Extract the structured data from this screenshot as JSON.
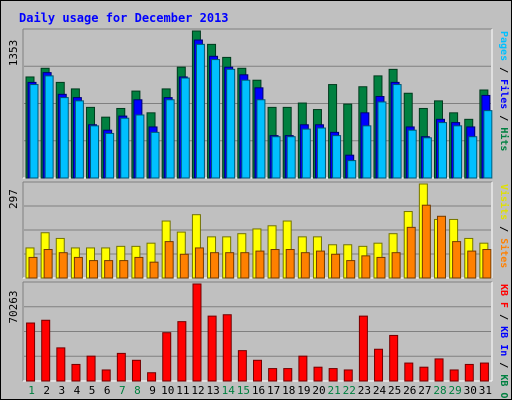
{
  "chart_data": {
    "type": "bar",
    "title": "Daily usage for December 2013",
    "categories": [
      "1",
      "2",
      "3",
      "4",
      "5",
      "6",
      "7",
      "8",
      "9",
      "10",
      "11",
      "12",
      "13",
      "14",
      "15",
      "16",
      "17",
      "18",
      "19",
      "20",
      "21",
      "22",
      "23",
      "24",
      "25",
      "26",
      "27",
      "28",
      "29",
      "30",
      "31"
    ],
    "weekend_days": [
      "1",
      "7",
      "8",
      "14",
      "15",
      "21",
      "22",
      "28",
      "29"
    ],
    "panels": [
      {
        "name": "top",
        "max_label": "1353",
        "ylim": [
          0,
          1353
        ],
        "legend": [
          {
            "text": "Pages",
            "color": "#00c0ff"
          },
          {
            "text": " / ",
            "color": "#000000"
          },
          {
            "text": "Files",
            "color": "#0000ff"
          },
          {
            "text": " / ",
            "color": "#000000"
          },
          {
            "text": "Hits",
            "color": "#008040"
          }
        ],
        "series": [
          {
            "name": "Hits",
            "color": "#008040",
            "values": [
              930,
              1010,
              880,
              820,
              650,
              560,
              640,
              800,
              600,
              820,
              1020,
              1353,
              1230,
              1110,
              1010,
              900,
              650,
              650,
              690,
              630,
              860,
              680,
              840,
              940,
              1000,
              780,
              640,
              710,
              600,
              540,
              810
            ]
          },
          {
            "name": "Files",
            "color": "#0000ff",
            "values": [
              880,
              970,
              770,
              740,
              490,
              440,
              570,
              720,
              470,
              740,
              930,
              1270,
              1120,
              1020,
              950,
              830,
              390,
              390,
              490,
              490,
              420,
              210,
              600,
              750,
              880,
              470,
              380,
              540,
              510,
              470,
              760
            ]
          },
          {
            "name": "Pages",
            "color": "#00c0ff",
            "values": [
              860,
              940,
              740,
              710,
              480,
              410,
              550,
              580,
              420,
              720,
              920,
              1230,
              1090,
              1000,
              900,
              720,
              380,
              380,
              450,
              460,
              390,
              160,
              480,
              700,
              860,
              440,
              370,
              510,
              480,
              380,
              620
            ]
          }
        ]
      },
      {
        "name": "middle",
        "max_label": "297",
        "ylim": [
          0,
          297
        ],
        "legend": [
          {
            "text": "Visits",
            "color": "#e0e000"
          },
          {
            "text": " / ",
            "color": "#000000"
          },
          {
            "text": "Sites",
            "color": "#ff8000"
          }
        ],
        "series": [
          {
            "name": "Visits",
            "color": "#ffff00",
            "values": [
              95,
              143,
              125,
              95,
              95,
              95,
              100,
              100,
              110,
              180,
              145,
              200,
              130,
              130,
              140,
              155,
              165,
              180,
              130,
              130,
              105,
              105,
              100,
              110,
              140,
              210,
              297,
              185,
              185,
              125,
              110
            ]
          },
          {
            "name": "Sites",
            "color": "#ff8000",
            "values": [
              65,
              90,
              80,
              65,
              55,
              55,
              55,
              65,
              50,
              115,
              75,
              95,
              80,
              80,
              80,
              85,
              90,
              90,
              80,
              85,
              75,
              55,
              70,
              65,
              80,
              160,
              230,
              195,
              115,
              85,
              90
            ]
          }
        ]
      },
      {
        "name": "bottom",
        "max_label": "70263",
        "ylim": [
          0,
          70263
        ],
        "legend": [
          {
            "text": "KB F",
            "color": "#ff0000"
          },
          {
            "text": " / ",
            "color": "#000000"
          },
          {
            "text": "KB In",
            "color": "#0000ff"
          },
          {
            "text": " / ",
            "color": "#000000"
          },
          {
            "text": "KB Out",
            "color": "#008040"
          }
        ],
        "series": [
          {
            "name": "KB F",
            "color": "#ff0000",
            "values": [
              42000,
              44000,
              24000,
              12000,
              18000,
              8000,
              20000,
              15000,
              6000,
              35000,
              43000,
              70263,
              47000,
              48000,
              22000,
              15000,
              9000,
              9000,
              18000,
              10000,
              9000,
              8000,
              47000,
              23000,
              33000,
              13000,
              10000,
              16000,
              8000,
              12000,
              13000
            ]
          }
        ]
      }
    ]
  }
}
